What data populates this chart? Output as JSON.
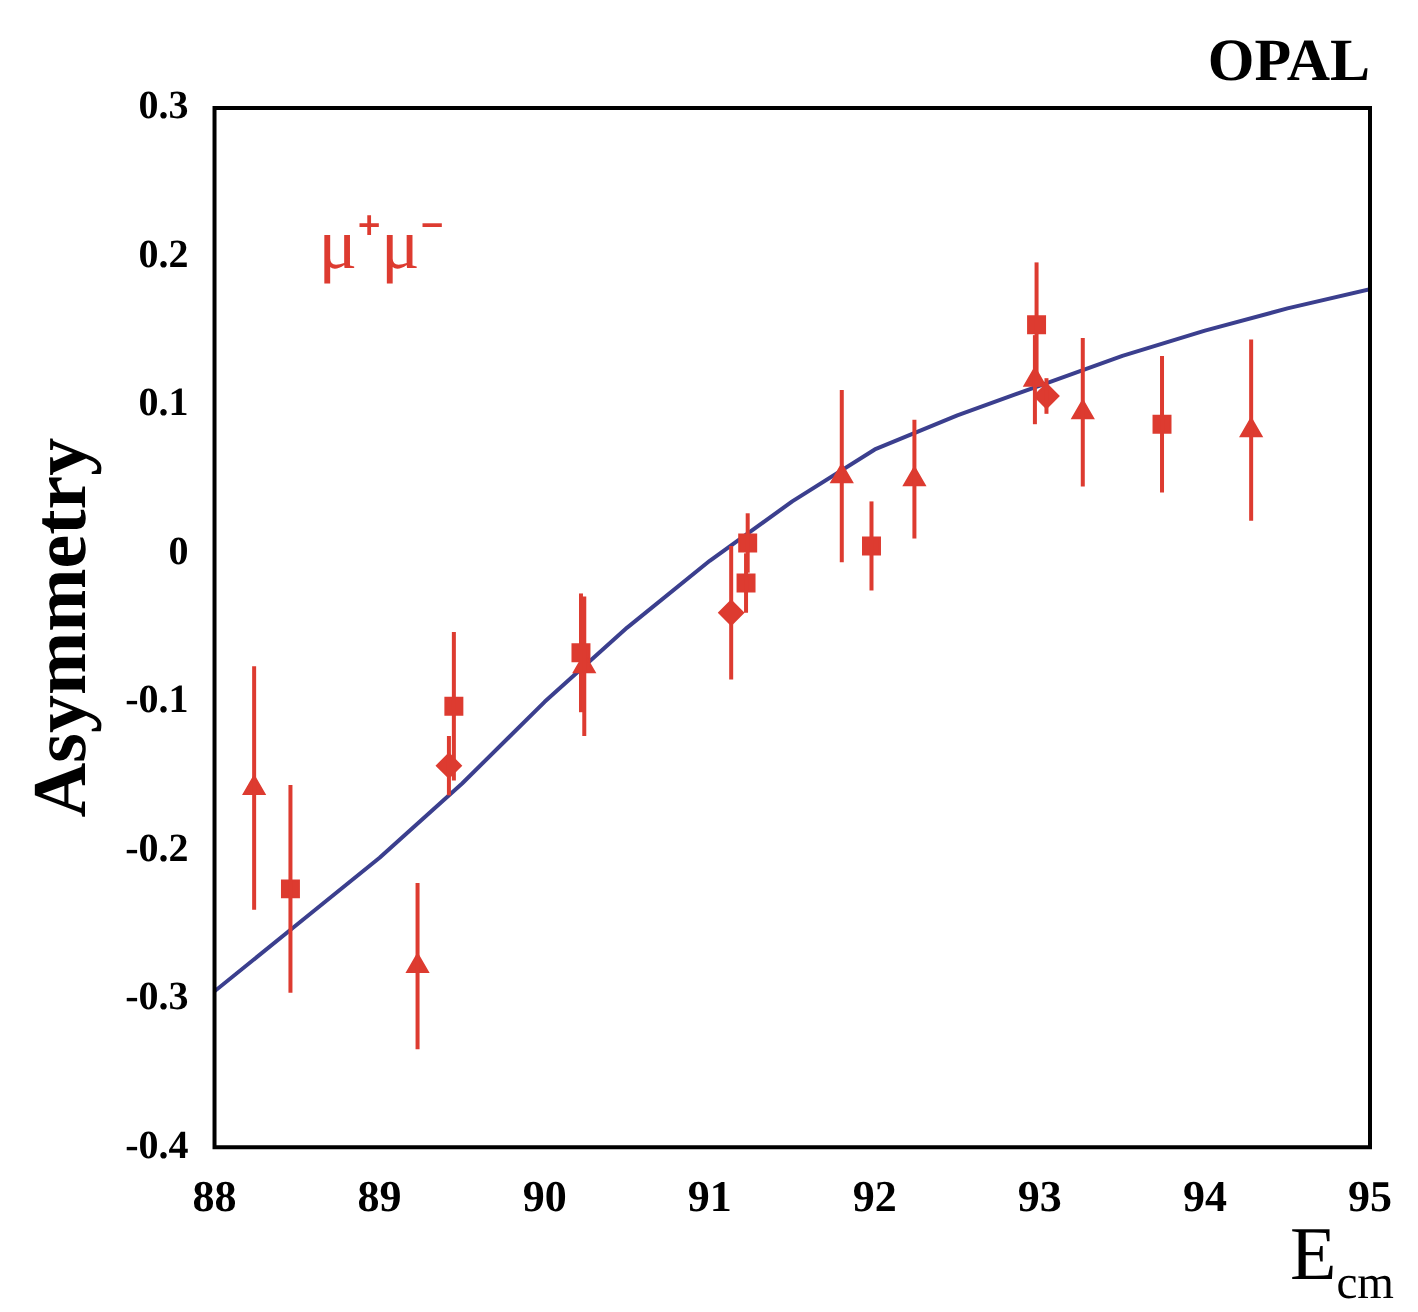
{
  "chart_data": {
    "type": "scatter",
    "title": "OPAL",
    "xlabel": "E$_{cm}$",
    "ylabel": "Asymmetry",
    "annotations": [
      "μ⁺μ⁻"
    ],
    "xlim": [
      88,
      95
    ],
    "xticks": [
      88,
      89,
      90,
      91,
      92,
      93,
      94,
      95
    ],
    "ylim": [
      -0.4,
      0.3
    ],
    "yticks": [
      -0.4,
      -0.3,
      -0.2,
      -0.1,
      0,
      0.1,
      0.2,
      0.3
    ],
    "grid": false,
    "legend": false,
    "series": [
      {
        "type": "scatter",
        "marker": "triangle",
        "color": "#dd3b30",
        "x": [
          88.24,
          89.23,
          90.24,
          91.27,
          91.8,
          92.24,
          92.97,
          93.26,
          94.28
        ],
        "values": [
          -0.158,
          -0.278,
          -0.076,
          null,
          0.052,
          0.05,
          0.117,
          0.095,
          0.083
        ],
        "errors": [
          0.082,
          0.056,
          0.047,
          null,
          0.058,
          0.04,
          0.03,
          0.05,
          0.061
        ]
      },
      {
        "type": "scatter",
        "marker": "square",
        "color": "#dd3b30",
        "x": [
          88.46,
          89.45,
          90.22,
          91.22,
          91.23,
          91.98,
          92.98,
          93.74
        ],
        "values": [
          -0.226,
          -0.103,
          -0.067,
          -0.02,
          0.007,
          0.005,
          0.154,
          0.087
        ],
        "errors": [
          0.07,
          0.05,
          0.04,
          0.02,
          0.02,
          0.03,
          0.042,
          0.046
        ]
      },
      {
        "type": "scatter",
        "marker": "diamond",
        "color": "#dd3b30",
        "x": [
          89.42,
          91.13,
          91.31,
          93.04
        ],
        "values": [
          -0.143,
          -0.04,
          null,
          0.106
        ],
        "errors": [
          0.02,
          0.045,
          null,
          0.012
        ]
      },
      {
        "type": "line",
        "marker": "none",
        "color": "#3b3f8e",
        "x": [
          88,
          88.5,
          89,
          89.5,
          90,
          90.5,
          91,
          91.5,
          92,
          92.5,
          93,
          93.5,
          94,
          94.5,
          95
        ],
        "values": [
          -0.295,
          -0.25,
          -0.205,
          -0.155,
          -0.1,
          -0.05,
          -0.005,
          0.035,
          0.07,
          0.093,
          0.113,
          0.133,
          0.15,
          0.165,
          0.178
        ]
      }
    ]
  }
}
